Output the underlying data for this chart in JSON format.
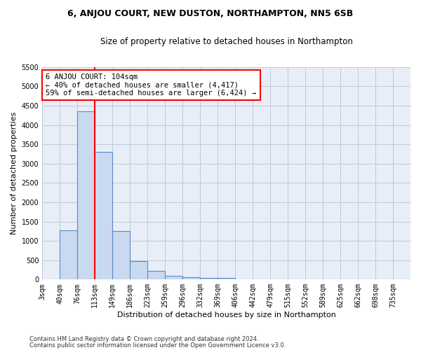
{
  "title1": "6, ANJOU COURT, NEW DUSTON, NORTHAMPTON, NN5 6SB",
  "title2": "Size of property relative to detached houses in Northampton",
  "xlabel": "Distribution of detached houses by size in Northampton",
  "ylabel": "Number of detached properties",
  "categories": [
    "3sqm",
    "40sqm",
    "76sqm",
    "113sqm",
    "149sqm",
    "186sqm",
    "223sqm",
    "259sqm",
    "296sqm",
    "332sqm",
    "369sqm",
    "406sqm",
    "442sqm",
    "479sqm",
    "515sqm",
    "552sqm",
    "589sqm",
    "625sqm",
    "662sqm",
    "698sqm",
    "735sqm"
  ],
  "bar_heights": [
    0,
    1270,
    4350,
    3300,
    1260,
    480,
    215,
    90,
    60,
    50,
    50,
    0,
    0,
    0,
    0,
    0,
    0,
    0,
    0,
    0,
    0
  ],
  "bar_color": "#c9d9f0",
  "bar_edge_color": "#5a8ac6",
  "vline_pos": 3.0,
  "vline_color": "red",
  "annotation_text": "6 ANJOU COURT: 104sqm\n← 40% of detached houses are smaller (4,417)\n59% of semi-detached houses are larger (6,424) →",
  "annotation_box_color": "white",
  "annotation_box_edge": "red",
  "ylim": [
    0,
    5500
  ],
  "yticks": [
    0,
    500,
    1000,
    1500,
    2000,
    2500,
    3000,
    3500,
    4000,
    4500,
    5000,
    5500
  ],
  "grid_color": "#c0c8d8",
  "bg_color": "#e8eef8",
  "footer1": "Contains HM Land Registry data © Crown copyright and database right 2024.",
  "footer2": "Contains public sector information licensed under the Open Government Licence v3.0."
}
